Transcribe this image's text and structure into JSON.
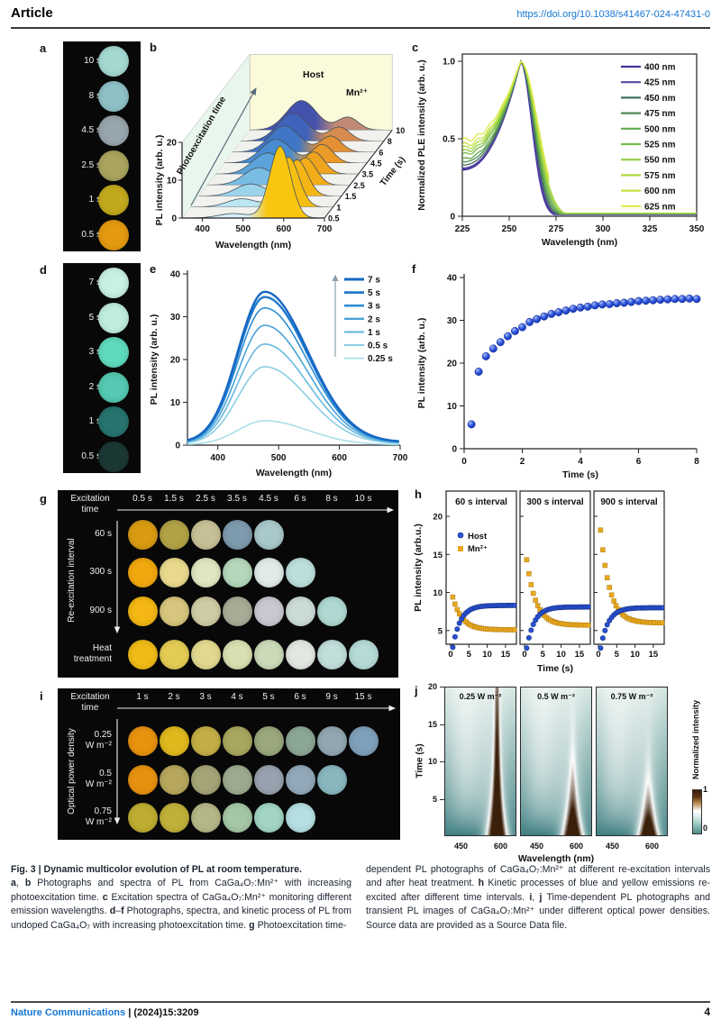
{
  "header": {
    "article_label": "Article",
    "doi": "https://doi.org/10.1038/s41467-024-47431-0",
    "doi_color": "#1576d2"
  },
  "panels": {
    "a": {
      "letter": "a",
      "circles": [
        {
          "label": "10 s",
          "color": "#a4d9d2"
        },
        {
          "label": "8 s",
          "color": "#8ec1c6"
        },
        {
          "label": "4.5 s",
          "color": "#97a5ac"
        },
        {
          "label": "2.5 s",
          "color": "#a9a45e"
        },
        {
          "label": "1 s",
          "color": "#c3a91d"
        },
        {
          "label": "0.5 s",
          "color": "#e49a10"
        }
      ]
    },
    "d": {
      "letter": "d",
      "circles": [
        {
          "label": "7 s",
          "color": "#c8f1e3"
        },
        {
          "label": "5 s",
          "color": "#c0eedd"
        },
        {
          "label": "3 s",
          "color": "#5edabd"
        },
        {
          "label": "2 s",
          "color": "#55c9b1"
        },
        {
          "label": "1 s",
          "color": "#27736d"
        },
        {
          "label": "0.5 s",
          "color": "#1c3834"
        }
      ]
    },
    "b": {
      "letter": "b"
    },
    "c": {
      "letter": "c"
    },
    "e": {
      "letter": "e"
    },
    "f": {
      "letter": "f"
    },
    "g": {
      "letter": "g",
      "header": [
        "Excitation",
        "time"
      ],
      "row_axis": "Re-excitation interval",
      "columns": [
        "0.5 s",
        "1.5 s",
        "2.5 s",
        "3.5 s",
        "4.5 s",
        "6 s",
        "8 s",
        "10 s"
      ],
      "rows": [
        {
          "label_lines": [
            "60 s"
          ],
          "colors": [
            "#d99b12",
            "#b1a246",
            "#c7c096",
            "#7e9aad",
            "#a9c8c9"
          ]
        },
        {
          "label_lines": [
            "300 s"
          ],
          "colors": [
            "#f1a80e",
            "#e9d98d",
            "#dfe6c1",
            "#b5d7ba",
            "#e0eae7",
            "#bcdfdc"
          ]
        },
        {
          "label_lines": [
            "900 s"
          ],
          "colors": [
            "#f4b713",
            "#d7c67d",
            "#cfcba4",
            "#a8ab96",
            "#c8c8d1",
            "#cbdcd7",
            "#aed8d1"
          ]
        },
        {
          "label_lines": [
            "Heat",
            "treatment"
          ],
          "colors": [
            "#f0bb16",
            "#e4cc54",
            "#e2d98f",
            "#d9dfb0",
            "#cbdab8",
            "#e2e7e1",
            "#c1dedb",
            "#b5dad7"
          ]
        }
      ]
    },
    "h": {
      "letter": "h"
    },
    "i": {
      "letter": "i",
      "header": [
        "Excitation",
        "time"
      ],
      "row_axis": "Optical power density",
      "columns": [
        "1 s",
        "2 s",
        "3 s",
        "4 s",
        "5 s",
        "6 s",
        "9 s",
        "15 s"
      ],
      "rows": [
        {
          "label_lines": [
            "0.25",
            "W m⁻²"
          ],
          "colors": [
            "#e8920e",
            "#deb81d",
            "#c3ae45",
            "#a9a65f",
            "#9aa87c",
            "#8ca694",
            "#93a6b0",
            "#7fa0ba"
          ]
        },
        {
          "label_lines": [
            "0.5",
            "W m⁻²"
          ],
          "colors": [
            "#e89110",
            "#b7a75c",
            "#a5a477",
            "#9cab90",
            "#97a2ae",
            "#92a8b8",
            "#88b8be"
          ]
        },
        {
          "label_lines": [
            "0.75",
            "W m⁻²"
          ],
          "colors": [
            "#bead32",
            "#c0b03a",
            "#b5b788",
            "#a5c7a6",
            "#a2d5c2",
            "#b6dfe2"
          ]
        }
      ]
    },
    "j": {
      "letter": "j"
    }
  },
  "chart_data": [
    {
      "id": "b",
      "type": "area",
      "title": "3D waterfall of PL spectra vs photoexcitation time",
      "xlabel": "Wavelength (nm)",
      "ylabel": "PL intensity (arb. u.)",
      "zlabel": "Time (s)",
      "x_range": [
        350,
        700
      ],
      "x_ticks": [
        400,
        500,
        600,
        700
      ],
      "y_ticks": [
        0,
        10,
        20
      ],
      "arrow_label": "Photoexcitation time",
      "annotations": [
        "Host",
        "Mn²⁺"
      ],
      "times": [
        "0.5",
        "1",
        "1.5",
        "2.5",
        "3.5",
        "4.5",
        "6",
        "8",
        "10"
      ],
      "host_peak_nm": 477,
      "mn_peak_nm": 591,
      "host_amps": [
        1.2,
        2.2,
        3.2,
        4.6,
        5.6,
        6.3,
        6.9,
        7.4,
        7.8
      ],
      "mn_amps": [
        19,
        13.2,
        9.6,
        7.2,
        5.8,
        4.9,
        4.2,
        3.7,
        3.4
      ],
      "host_colors": [
        "#d6f0f6",
        "#bce6f2",
        "#9cd4ec",
        "#79bce4",
        "#5ba3da",
        "#478cd0",
        "#3f76c6",
        "#3f62ba",
        "#4452ae"
      ],
      "mn_colors": [
        "#f9c50f",
        "#f7be12",
        "#f5b615",
        "#f2ad19",
        "#efa41e",
        "#ea9a26",
        "#e39134",
        "#d68c4e",
        "#c08a74"
      ],
      "wall_left_color": "#e9f6ed",
      "wall_back_color": "#fbfada"
    },
    {
      "id": "c",
      "type": "line",
      "title": "Excitation (PLE) spectra at different emission wavelengths",
      "xlabel": "Wavelength (nm)",
      "ylabel": "Normalized PLE intensity (arb. u.)",
      "x_ticks": [
        225,
        250,
        275,
        300,
        325,
        350
      ],
      "y_ticks": [
        "0",
        "0.5",
        "1.0"
      ],
      "peak_nm": 256,
      "series": [
        {
          "name": "400 nm",
          "color": "#44339f",
          "start": 0.3
        },
        {
          "name": "425 nm",
          "color": "#54489f",
          "start": 0.31
        },
        {
          "name": "450 nm",
          "color": "#41705a",
          "start": 0.33
        },
        {
          "name": "475 nm",
          "color": "#4e8c52",
          "start": 0.35
        },
        {
          "name": "500 nm",
          "color": "#60a84d",
          "start": 0.37
        },
        {
          "name": "525 nm",
          "color": "#78bc49",
          "start": 0.4
        },
        {
          "name": "550 nm",
          "color": "#92cc45",
          "start": 0.42
        },
        {
          "name": "575 nm",
          "color": "#aeda44",
          "start": 0.44
        },
        {
          "name": "600 nm",
          "color": "#c8e245",
          "start": 0.46
        },
        {
          "name": "625 nm",
          "color": "#e0e94b",
          "start": 0.49
        }
      ]
    },
    {
      "id": "e",
      "type": "line",
      "title": "PL spectra of undoped host vs excitation time",
      "xlabel": "Wavelength (nm)",
      "ylabel": "PL intensity (arb. u.)",
      "x_ticks": [
        400,
        500,
        600,
        700
      ],
      "y_ticks": [
        0,
        10,
        20,
        30,
        40
      ],
      "peak_nm": 477,
      "series": [
        {
          "name": "7 s",
          "color": "#1668c4",
          "peak": 35.2
        },
        {
          "name": "5 s",
          "color": "#2179cb",
          "peak": 34.0
        },
        {
          "name": "3 s",
          "color": "#2f8dd3",
          "peak": 31.5
        },
        {
          "name": "2 s",
          "color": "#49a3d9",
          "peak": 27.5
        },
        {
          "name": "1 s",
          "color": "#67b9df",
          "peak": 23.2
        },
        {
          "name": "0.5 s",
          "color": "#8bcde5",
          "peak": 18.0
        },
        {
          "name": "0.25 s",
          "color": "#aadfeb",
          "peak": 5.6
        }
      ]
    },
    {
      "id": "f",
      "type": "scatter",
      "title": "Kinetics of host PL rise",
      "xlabel": "Time (s)",
      "ylabel": "PL intensity (arb. u.)",
      "x_ticks": [
        0,
        2,
        4,
        6,
        8
      ],
      "y_ticks": [
        0,
        10,
        20,
        30,
        40
      ],
      "marker_color": "#2443cf",
      "x": [
        0.25,
        0.5,
        0.75,
        1,
        1.25,
        1.5,
        1.75,
        2,
        2.25,
        2.5,
        2.75,
        3,
        3.25,
        3.5,
        3.75,
        4,
        4.25,
        4.5,
        4.75,
        5,
        5.25,
        5.5,
        5.75,
        6,
        6.25,
        6.5,
        6.75,
        7,
        7.25,
        7.5,
        7.75,
        8
      ],
      "y": [
        5.7,
        18,
        21.6,
        23.4,
        24.9,
        26.3,
        27.5,
        28.4,
        29.6,
        30.3,
        30.9,
        31.5,
        31.9,
        32.3,
        32.7,
        33,
        33.2,
        33.5,
        33.7,
        33.8,
        34,
        34.1,
        34.3,
        34.5,
        34.6,
        34.7,
        34.8,
        34.9,
        35,
        35,
        35.1,
        35
      ]
    },
    {
      "id": "h",
      "type": "scatter",
      "title": "Re-excitation kinetics of blue and yellow emissions",
      "xlabel": "Time (s)",
      "ylabel": "PL intensity (arb.u.)",
      "x_ticks": [
        0,
        5,
        10,
        15
      ],
      "y_ticks": [
        5,
        10,
        15,
        20
      ],
      "legend": [
        {
          "name": "Host",
          "color": "#2a50d4",
          "marker": "circle"
        },
        {
          "name": "Mn²⁺",
          "color": "#e9a81e",
          "marker": "square"
        }
      ],
      "panels": [
        {
          "title": "60 s interval",
          "host_start": 2.8,
          "host_end": 8.3,
          "mn_start": 9.4,
          "mn_end": 5.1
        },
        {
          "title": "300 s interval",
          "host_start": 2.7,
          "host_end": 8.1,
          "mn_start": 14.3,
          "mn_end": 5.7
        },
        {
          "title": "900 s interval",
          "host_start": 2.7,
          "host_end": 8.0,
          "mn_start": 18.2,
          "mn_end": 6.0
        }
      ]
    },
    {
      "id": "j",
      "type": "heatmap",
      "title": "Transient PL images under different optical power densities",
      "xlabel": "Wavelength (nm)",
      "ylabel": "Time (s)",
      "x_ticks": [
        450,
        600
      ],
      "y_ticks": [
        5,
        10,
        15,
        20
      ],
      "lambda_range": [
        386,
        664
      ],
      "time_range": [
        0,
        20
      ],
      "mn_peak_nm": 592,
      "host_peak_nm": 468,
      "colorbar": {
        "label": "Normalized intensity",
        "tick_low": "0",
        "tick_high": "1"
      },
      "colors": {
        "low": "#428183",
        "mid": "#ffffff",
        "high": "#3a200a"
      },
      "panels": [
        {
          "title": "0.25 W m⁻²",
          "mn_tau": 28
        },
        {
          "title": "0.5 W m⁻²",
          "mn_tau": 6.5
        },
        {
          "title": "0.75 W m⁻²",
          "mn_tau": 4.5
        }
      ]
    }
  ],
  "caption": {
    "left": [
      {
        "t": "Fig. 3 | Dynamic multicolor evolution of PL at room temperature.",
        "b": 1
      },
      {
        "br": 1
      },
      {
        "t": "a",
        "b": 1
      },
      {
        "t": ", "
      },
      {
        "t": "b",
        "b": 1
      },
      {
        "t": " Photographs and spectra of PL from CaGa₄O₇:Mn²⁺ with increasing photoexcitation time. "
      },
      {
        "t": "c",
        "b": 1
      },
      {
        "t": " Excitation spectra of CaGa₄O₇:Mn²⁺ monitoring different emission wavelengths. "
      },
      {
        "t": "d",
        "b": 1
      },
      {
        "t": "–"
      },
      {
        "t": "f",
        "b": 1
      },
      {
        "t": " Photographs, spectra, and kinetic process of PL from undoped CaGa₄O₇ with increasing photoexcitation time. "
      },
      {
        "t": "g",
        "b": 1
      },
      {
        "t": " Photoexcitation time-"
      }
    ],
    "right": [
      {
        "t": "dependent PL photographs of CaGa₄O₇:Mn²⁺ at different re-excitation intervals and after heat treatment. "
      },
      {
        "t": "h",
        "b": 1
      },
      {
        "t": " Kinetic processes of blue and yellow emissions re-excited after different time intervals. "
      },
      {
        "t": "i",
        "b": 1
      },
      {
        "t": ", "
      },
      {
        "t": "j",
        "b": 1
      },
      {
        "t": " Time-dependent PL photographs and transient PL images of CaGa₄O₇:Mn²⁺ under different optical power densities. Source data are provided as a Source Data file."
      }
    ]
  },
  "footer": {
    "journal": "Nature Communications",
    "sep": " | ",
    "citation": "(2024)15:3209",
    "page": "4"
  }
}
